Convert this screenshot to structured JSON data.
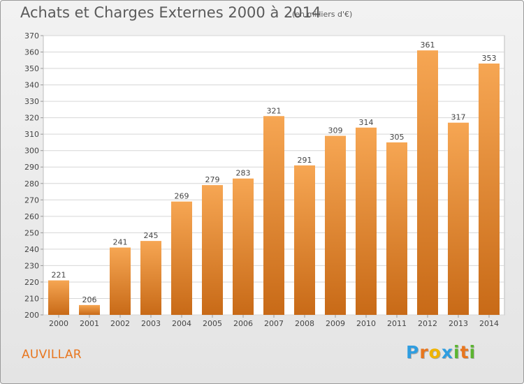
{
  "header": {
    "title": "Achats et Charges Externes 2000 à 2014",
    "unit": "(en milliers d'€)"
  },
  "footer": {
    "place": "AUVILLAR",
    "brand": "Proxiti",
    "brand_colors": [
      "#2f9de0",
      "#e8761e",
      "#f0b400",
      "#2f9de0",
      "#5cb531",
      "#e8761e",
      "#5cb531"
    ]
  },
  "colors": {
    "bar_top": "#f6a653",
    "bar_bottom": "#c86a17",
    "grid": "#d6d6d6",
    "plot_bg": "#ffffff"
  },
  "chart_data": {
    "type": "bar",
    "categories": [
      "2000",
      "2001",
      "2002",
      "2003",
      "2004",
      "2005",
      "2006",
      "2007",
      "2008",
      "2009",
      "2010",
      "2011",
      "2012",
      "2013",
      "2014"
    ],
    "values": [
      221,
      206,
      241,
      245,
      269,
      279,
      283,
      321,
      291,
      309,
      314,
      305,
      361,
      317,
      353
    ],
    "title": "Achats et Charges Externes 2000 à 2014",
    "ylim": [
      200,
      370
    ],
    "yticks": [
      200,
      210,
      220,
      230,
      240,
      250,
      260,
      270,
      280,
      290,
      300,
      310,
      320,
      330,
      340,
      350,
      360,
      370
    ],
    "grid": true
  }
}
